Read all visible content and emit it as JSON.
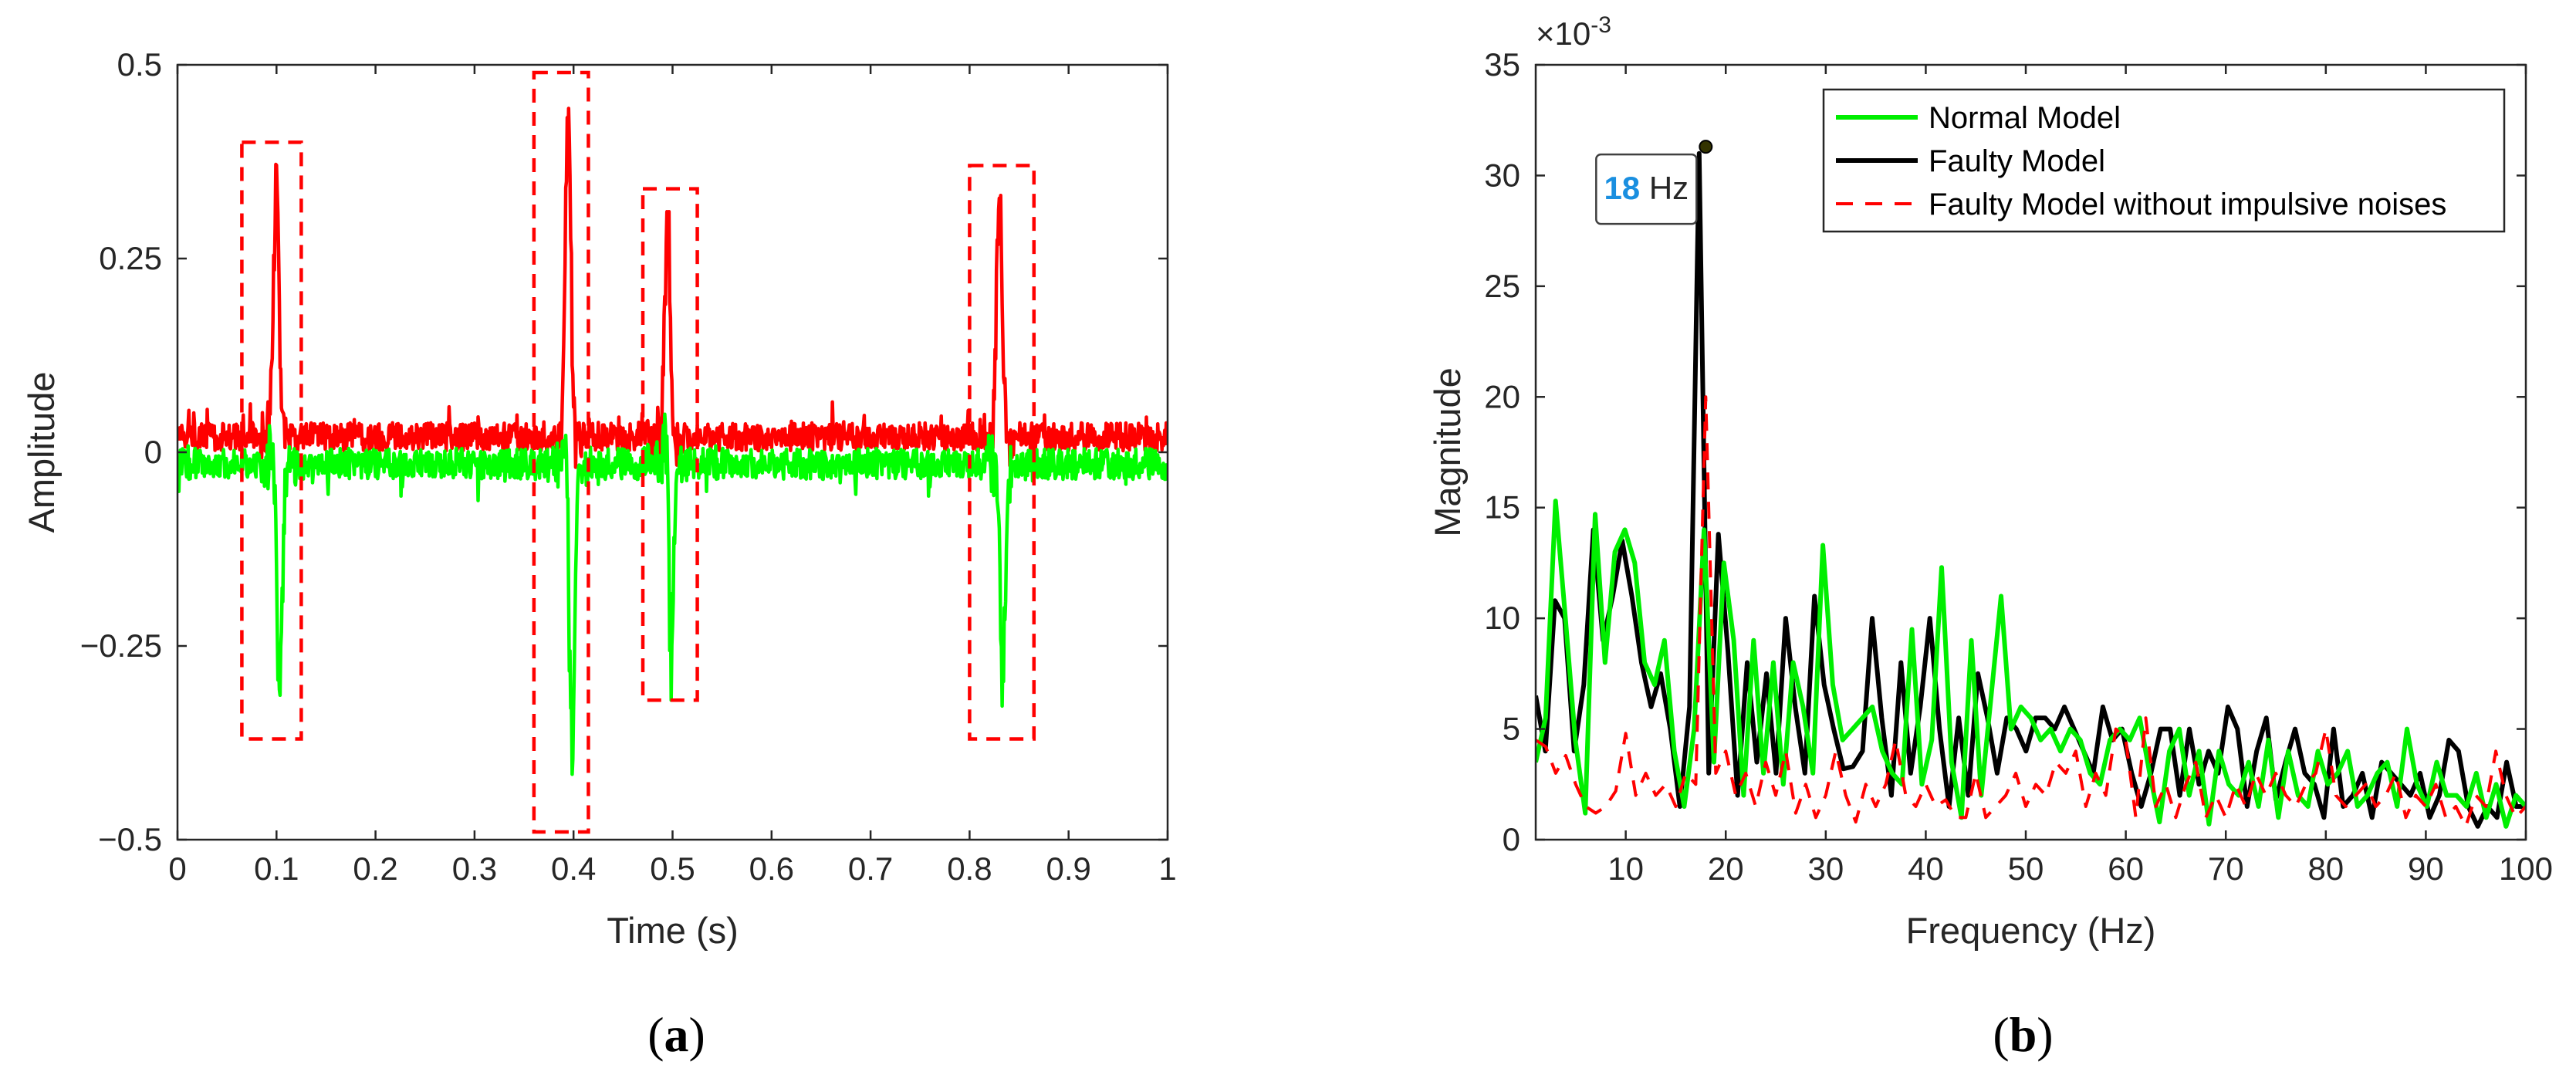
{
  "chart_data": [
    {
      "type": "line",
      "caption_letter": "a",
      "caption_open": "(",
      "caption_close": ")",
      "title": "",
      "xlabel": "Time (s)",
      "ylabel": "Amplitude",
      "xlim": [
        0,
        1
      ],
      "ylim": [
        -0.5,
        0.5
      ],
      "xticks": [
        0,
        0.1,
        0.2,
        0.3,
        0.4,
        0.5,
        0.6,
        0.7,
        0.8,
        0.9,
        1
      ],
      "xtick_labels": [
        "0",
        "0.1",
        "0.2",
        "0.3",
        "0.4",
        "0.5",
        "0.6",
        "0.7",
        "0.8",
        "0.9",
        "1"
      ],
      "yticks": [
        -0.5,
        -0.25,
        0,
        0.25,
        0.5
      ],
      "ytick_labels": [
        "−0.5",
        "−0.25",
        "0",
        "0.25",
        "0.5"
      ],
      "series": [
        {
          "name": "red",
          "color": "#ff0000",
          "baseline": 0.02,
          "noise": 0.018,
          "spikes": [
            {
              "t": 0.1,
              "up": 0.37,
              "down": -0.02
            },
            {
              "t": 0.395,
              "up": 0.48,
              "down": -0.06
            },
            {
              "t": 0.495,
              "up": 0.32,
              "down": -0.02
            },
            {
              "t": 0.83,
              "up": 0.35,
              "down": -0.02
            }
          ]
        },
        {
          "name": "green",
          "color": "#00ff00",
          "baseline": -0.015,
          "noise": 0.02,
          "spikes": [
            {
              "t": 0.1,
              "up": 0.07,
              "down": -0.36
            },
            {
              "t": 0.395,
              "up": 0.12,
              "down": -0.47
            },
            {
              "t": 0.495,
              "up": 0.14,
              "down": -0.31
            },
            {
              "t": 0.83,
              "up": 0.06,
              "down": -0.34
            }
          ]
        }
      ],
      "boxes": [
        {
          "x0": 0.065,
          "x1": 0.125,
          "y0": -0.37,
          "y1": 0.4
        },
        {
          "x0": 0.36,
          "x1": 0.415,
          "y0": -0.49,
          "y1": 0.49
        },
        {
          "x0": 0.47,
          "x1": 0.525,
          "y0": -0.32,
          "y1": 0.34
        },
        {
          "x0": 0.8,
          "x1": 0.865,
          "y0": -0.37,
          "y1": 0.37
        }
      ]
    },
    {
      "type": "line",
      "caption_letter": "b",
      "caption_open": "(",
      "caption_close": ")",
      "title": "",
      "xlabel": "Frequency (Hz)",
      "ylabel": "Magnitude",
      "exponent_prefix": "×10",
      "exponent_power": "-3",
      "xlim": [
        1,
        100
      ],
      "ylim": [
        0,
        35
      ],
      "xticks": [
        10,
        20,
        30,
        40,
        50,
        60,
        70,
        80,
        90,
        100
      ],
      "yticks": [
        0,
        5,
        10,
        15,
        20,
        25,
        30,
        35
      ],
      "legend_position": "top-right",
      "series": [
        {
          "name": "Faulty Model",
          "color": "#000000",
          "dash": "",
          "values": [
            6.5,
            4,
            10.8,
            10,
            4,
            7,
            14,
            9,
            11,
            13.5,
            11,
            8,
            6,
            7.5,
            5,
            1.5,
            6,
            31,
            3,
            13.8,
            8.5,
            2,
            8,
            3.5,
            7.5,
            3,
            10,
            6,
            3,
            11,
            7,
            5,
            3.2,
            3.3,
            4,
            10,
            5.5,
            2,
            8,
            3,
            6,
            10,
            5,
            1.5,
            5.5,
            2,
            7.5,
            5.5,
            3,
            5.5,
            5,
            4,
            5.5,
            5.5,
            5,
            6,
            5,
            4,
            3,
            6,
            4.5,
            5,
            3,
            1.5,
            3,
            5,
            5,
            2,
            5,
            2.5,
            4,
            3,
            6,
            5,
            1.5,
            4,
            5.5,
            1.8,
            3.5,
            5,
            3,
            2.5,
            1,
            5,
            1.5,
            2,
            3,
            1,
            3.5,
            3,
            2.5,
            2,
            3,
            1,
            2,
            4.5,
            4,
            1.5,
            0.6,
            1.5,
            1,
            3.5,
            1.5,
            1.5
          ]
        },
        {
          "name": "Normal Model",
          "color": "#00ee00",
          "dash": "",
          "values": [
            3.5,
            5.5,
            15.3,
            10,
            4.5,
            1.2,
            14.7,
            8,
            13,
            14,
            12.5,
            8,
            7,
            9,
            4,
            1.5,
            5,
            14,
            3.5,
            12.5,
            9,
            2,
            9,
            3,
            8,
            2.5,
            8,
            6,
            3,
            13.3,
            7,
            4.5,
            5,
            5.5,
            6,
            4,
            3,
            2.5,
            9.5,
            2.5,
            4.5,
            12.3,
            3.5,
            1,
            9,
            2,
            6.5,
            11,
            5,
            6,
            5.5,
            4.5,
            5,
            4,
            5,
            4.5,
            3,
            2.5,
            4.5,
            5,
            4.5,
            5.5,
            3,
            0.8,
            4,
            5,
            2,
            4,
            0.7,
            4,
            2.5,
            2,
            3.5,
            1.5,
            4.5,
            1,
            4,
            2,
            1.5,
            4,
            2.5,
            3,
            4,
            1.5,
            2,
            3,
            3.5,
            1.5,
            5,
            2.5,
            1.5,
            3.5,
            2,
            2,
            1.5,
            3,
            1,
            2.5,
            0.6,
            2,
            1.5
          ]
        },
        {
          "name": "Faulty Model without impulsive noises",
          "color": "#ff0000",
          "dash": "22,16",
          "values": [
            4.5,
            4.2,
            3,
            3.8,
            2.5,
            1.5,
            1.2,
            1.5,
            2.2,
            4.8,
            2,
            3,
            2,
            2.5,
            1.5,
            3,
            2.5,
            20,
            3,
            4,
            2,
            3,
            1.5,
            3.5,
            2,
            4,
            1.2,
            2.5,
            1,
            2,
            4,
            2,
            0.8,
            2.5,
            1.5,
            2.5,
            4.5,
            2,
            1.5,
            2.5,
            1.5,
            1.8,
            1,
            1,
            3,
            1,
            1.5,
            2,
            3,
            1.5,
            2.5,
            2,
            3.5,
            3,
            4,
            1.5,
            3,
            2,
            5,
            4.5,
            1,
            5.5,
            1.5,
            2.5,
            1,
            2.5,
            3.5,
            1,
            2,
            1,
            2.5,
            1.5,
            3,
            2,
            3,
            2,
            1.5,
            2.5,
            3,
            5,
            2,
            1.5,
            2,
            2.5,
            1.5,
            2,
            3,
            1,
            2,
            1.5,
            2.5,
            1,
            1.5,
            0.6,
            2,
            1.5,
            4,
            2,
            1,
            1.5
          ]
        }
      ],
      "annotation": {
        "x": 18,
        "y": 31.3,
        "value": "18",
        "unit": "Hz",
        "marker_color": "#333300",
        "value_color": "#1a8fe0"
      }
    }
  ]
}
